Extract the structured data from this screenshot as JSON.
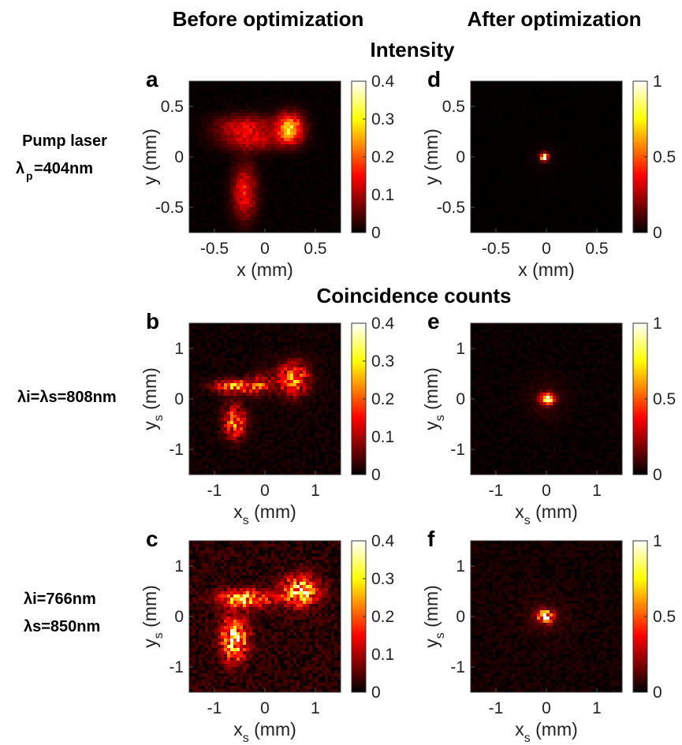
{
  "headers": {
    "before": "Before optimization",
    "after": "After optimization",
    "intensity": "Intensity",
    "coincidence": "Coincidence counts"
  },
  "rows": [
    {
      "label_main": "Pump laser",
      "lambda_sub": "p",
      "lambda_value": "=404nm"
    },
    {
      "label": "λi=λs=808nm"
    },
    {
      "label_line1": "λi=766nm",
      "label_line2": "λs=850nm"
    }
  ],
  "chart_data": [
    {
      "panel": "a",
      "type": "heatmap",
      "title": "",
      "xlabel": "x (mm)",
      "ylabel": "y (mm)",
      "xlim": [
        -0.75,
        0.75
      ],
      "ylim": [
        -0.75,
        0.75
      ],
      "xticks": [
        -0.5,
        0,
        0.5
      ],
      "xticklabels": [
        "-0.5",
        "0",
        "0.5"
      ],
      "yticks": [
        -0.5,
        0,
        0.5
      ],
      "yticklabels": [
        "-0.5",
        "0",
        "0.5"
      ],
      "colorbar": {
        "min": 0,
        "max": 0.4,
        "ticks": [
          "0",
          "0.1",
          "0.2",
          "0.3",
          "0.4"
        ]
      },
      "colormap": "hot",
      "noise": 0.02,
      "blobs": [
        {
          "x": 0.25,
          "y": 0.28,
          "sx": 0.09,
          "sy": 0.1,
          "amp": 0.27
        },
        {
          "x": -0.2,
          "y": 0.3,
          "sx": 0.2,
          "sy": 0.08,
          "amp": 0.12
        },
        {
          "x": -0.12,
          "y": 0.15,
          "sx": 0.2,
          "sy": 0.07,
          "amp": 0.1
        },
        {
          "x": -0.2,
          "y": -0.35,
          "sx": 0.08,
          "sy": 0.18,
          "amp": 0.15
        }
      ]
    },
    {
      "panel": "d",
      "type": "heatmap",
      "title": "",
      "xlabel": "x (mm)",
      "ylabel": "y (mm)",
      "xlim": [
        -0.75,
        0.75
      ],
      "ylim": [
        -0.75,
        0.75
      ],
      "xticks": [
        -0.5,
        0,
        0.5
      ],
      "xticklabels": [
        "-0.5",
        "0",
        "0.5"
      ],
      "yticks": [
        -0.5,
        0,
        0.5
      ],
      "yticklabels": [
        "-0.5",
        "0",
        "0.5"
      ],
      "colorbar": {
        "min": 0,
        "max": 1,
        "ticks": [
          "0",
          "0.5",
          "1"
        ]
      },
      "colormap": "hot",
      "noise": 0.01,
      "blobs": [
        {
          "x": -0.02,
          "y": 0.0,
          "sx": 0.025,
          "sy": 0.025,
          "amp": 1.0
        },
        {
          "x": -0.02,
          "y": 0.0,
          "sx": 0.1,
          "sy": 0.1,
          "amp": 0.03
        }
      ]
    },
    {
      "panel": "b",
      "type": "heatmap",
      "title": "",
      "xlabel": "xs (mm)",
      "ylabel": "ys (mm)",
      "xlim": [
        -1.5,
        1.5
      ],
      "ylim": [
        -1.5,
        1.5
      ],
      "xticks": [
        -1,
        0,
        1
      ],
      "xticklabels": [
        "-1",
        "0",
        "1"
      ],
      "yticks": [
        -1,
        0,
        1
      ],
      "yticklabels": [
        "-1",
        "0",
        "1"
      ],
      "colorbar": {
        "min": 0,
        "max": 0.4,
        "ticks": [
          "0",
          "0.1",
          "0.2",
          "0.3",
          "0.4"
        ]
      },
      "colormap": "hot",
      "noise": 0.05,
      "blobs": [
        {
          "x": 0.55,
          "y": 0.4,
          "sx": 0.22,
          "sy": 0.22,
          "amp": 0.2
        },
        {
          "x": -0.55,
          "y": 0.25,
          "sx": 0.3,
          "sy": 0.1,
          "amp": 0.2
        },
        {
          "x": -0.1,
          "y": 0.3,
          "sx": 0.15,
          "sy": 0.15,
          "amp": 0.1
        },
        {
          "x": -0.6,
          "y": -0.45,
          "sx": 0.15,
          "sy": 0.22,
          "amp": 0.2
        }
      ]
    },
    {
      "panel": "e",
      "type": "heatmap",
      "title": "",
      "xlabel": "xs (mm)",
      "ylabel": "ys (mm)",
      "xlim": [
        -1.5,
        1.5
      ],
      "ylim": [
        -1.5,
        1.5
      ],
      "xticks": [
        -1,
        0,
        1
      ],
      "xticklabels": [
        "-1",
        "0",
        "1"
      ],
      "yticks": [
        -1,
        0,
        1
      ],
      "yticklabels": [
        "-1",
        "0",
        "1"
      ],
      "colorbar": {
        "min": 0,
        "max": 1,
        "ticks": [
          "0",
          "0.5",
          "1"
        ]
      },
      "colormap": "hot",
      "noise": 0.03,
      "blobs": [
        {
          "x": 0.02,
          "y": 0.0,
          "sx": 0.09,
          "sy": 0.07,
          "amp": 0.9
        },
        {
          "x": 0.0,
          "y": 0.0,
          "sx": 0.3,
          "sy": 0.3,
          "amp": 0.06
        }
      ]
    },
    {
      "panel": "c",
      "type": "heatmap",
      "title": "",
      "xlabel": "xs (mm)",
      "ylabel": "ys (mm)",
      "xlim": [
        -1.5,
        1.5
      ],
      "ylim": [
        -1.5,
        1.5
      ],
      "xticks": [
        -1,
        0,
        1
      ],
      "xticklabels": [
        "-1",
        "0",
        "1"
      ],
      "yticks": [
        -1,
        0,
        1
      ],
      "yticklabels": [
        "-1",
        "0",
        "1"
      ],
      "colorbar": {
        "min": 0,
        "max": 0.4,
        "ticks": [
          "0",
          "0.1",
          "0.2",
          "0.3",
          "0.4"
        ]
      },
      "colormap": "hot",
      "noise": 0.12,
      "blobs": [
        {
          "x": 0.7,
          "y": 0.5,
          "sx": 0.25,
          "sy": 0.2,
          "amp": 0.28
        },
        {
          "x": -0.4,
          "y": 0.35,
          "sx": 0.35,
          "sy": 0.12,
          "amp": 0.25
        },
        {
          "x": -0.6,
          "y": -0.45,
          "sx": 0.18,
          "sy": 0.28,
          "amp": 0.3
        }
      ]
    },
    {
      "panel": "f",
      "type": "heatmap",
      "title": "",
      "xlabel": "xs (mm)",
      "ylabel": "ys (mm)",
      "xlim": [
        -1.5,
        1.5
      ],
      "ylim": [
        -1.5,
        1.5
      ],
      "xticks": [
        -1,
        0,
        1
      ],
      "xticklabels": [
        "-1",
        "0",
        "1"
      ],
      "yticks": [
        -1,
        0,
        1
      ],
      "yticklabels": [
        "-1",
        "0",
        "1"
      ],
      "colorbar": {
        "min": 0,
        "max": 1,
        "ticks": [
          "0",
          "0.5",
          "1"
        ]
      },
      "colormap": "hot",
      "noise": 0.06,
      "blobs": [
        {
          "x": -0.02,
          "y": 0.0,
          "sx": 0.1,
          "sy": 0.08,
          "amp": 0.8
        },
        {
          "x": -0.05,
          "y": 0.0,
          "sx": 0.3,
          "sy": 0.25,
          "amp": 0.08
        }
      ]
    }
  ]
}
